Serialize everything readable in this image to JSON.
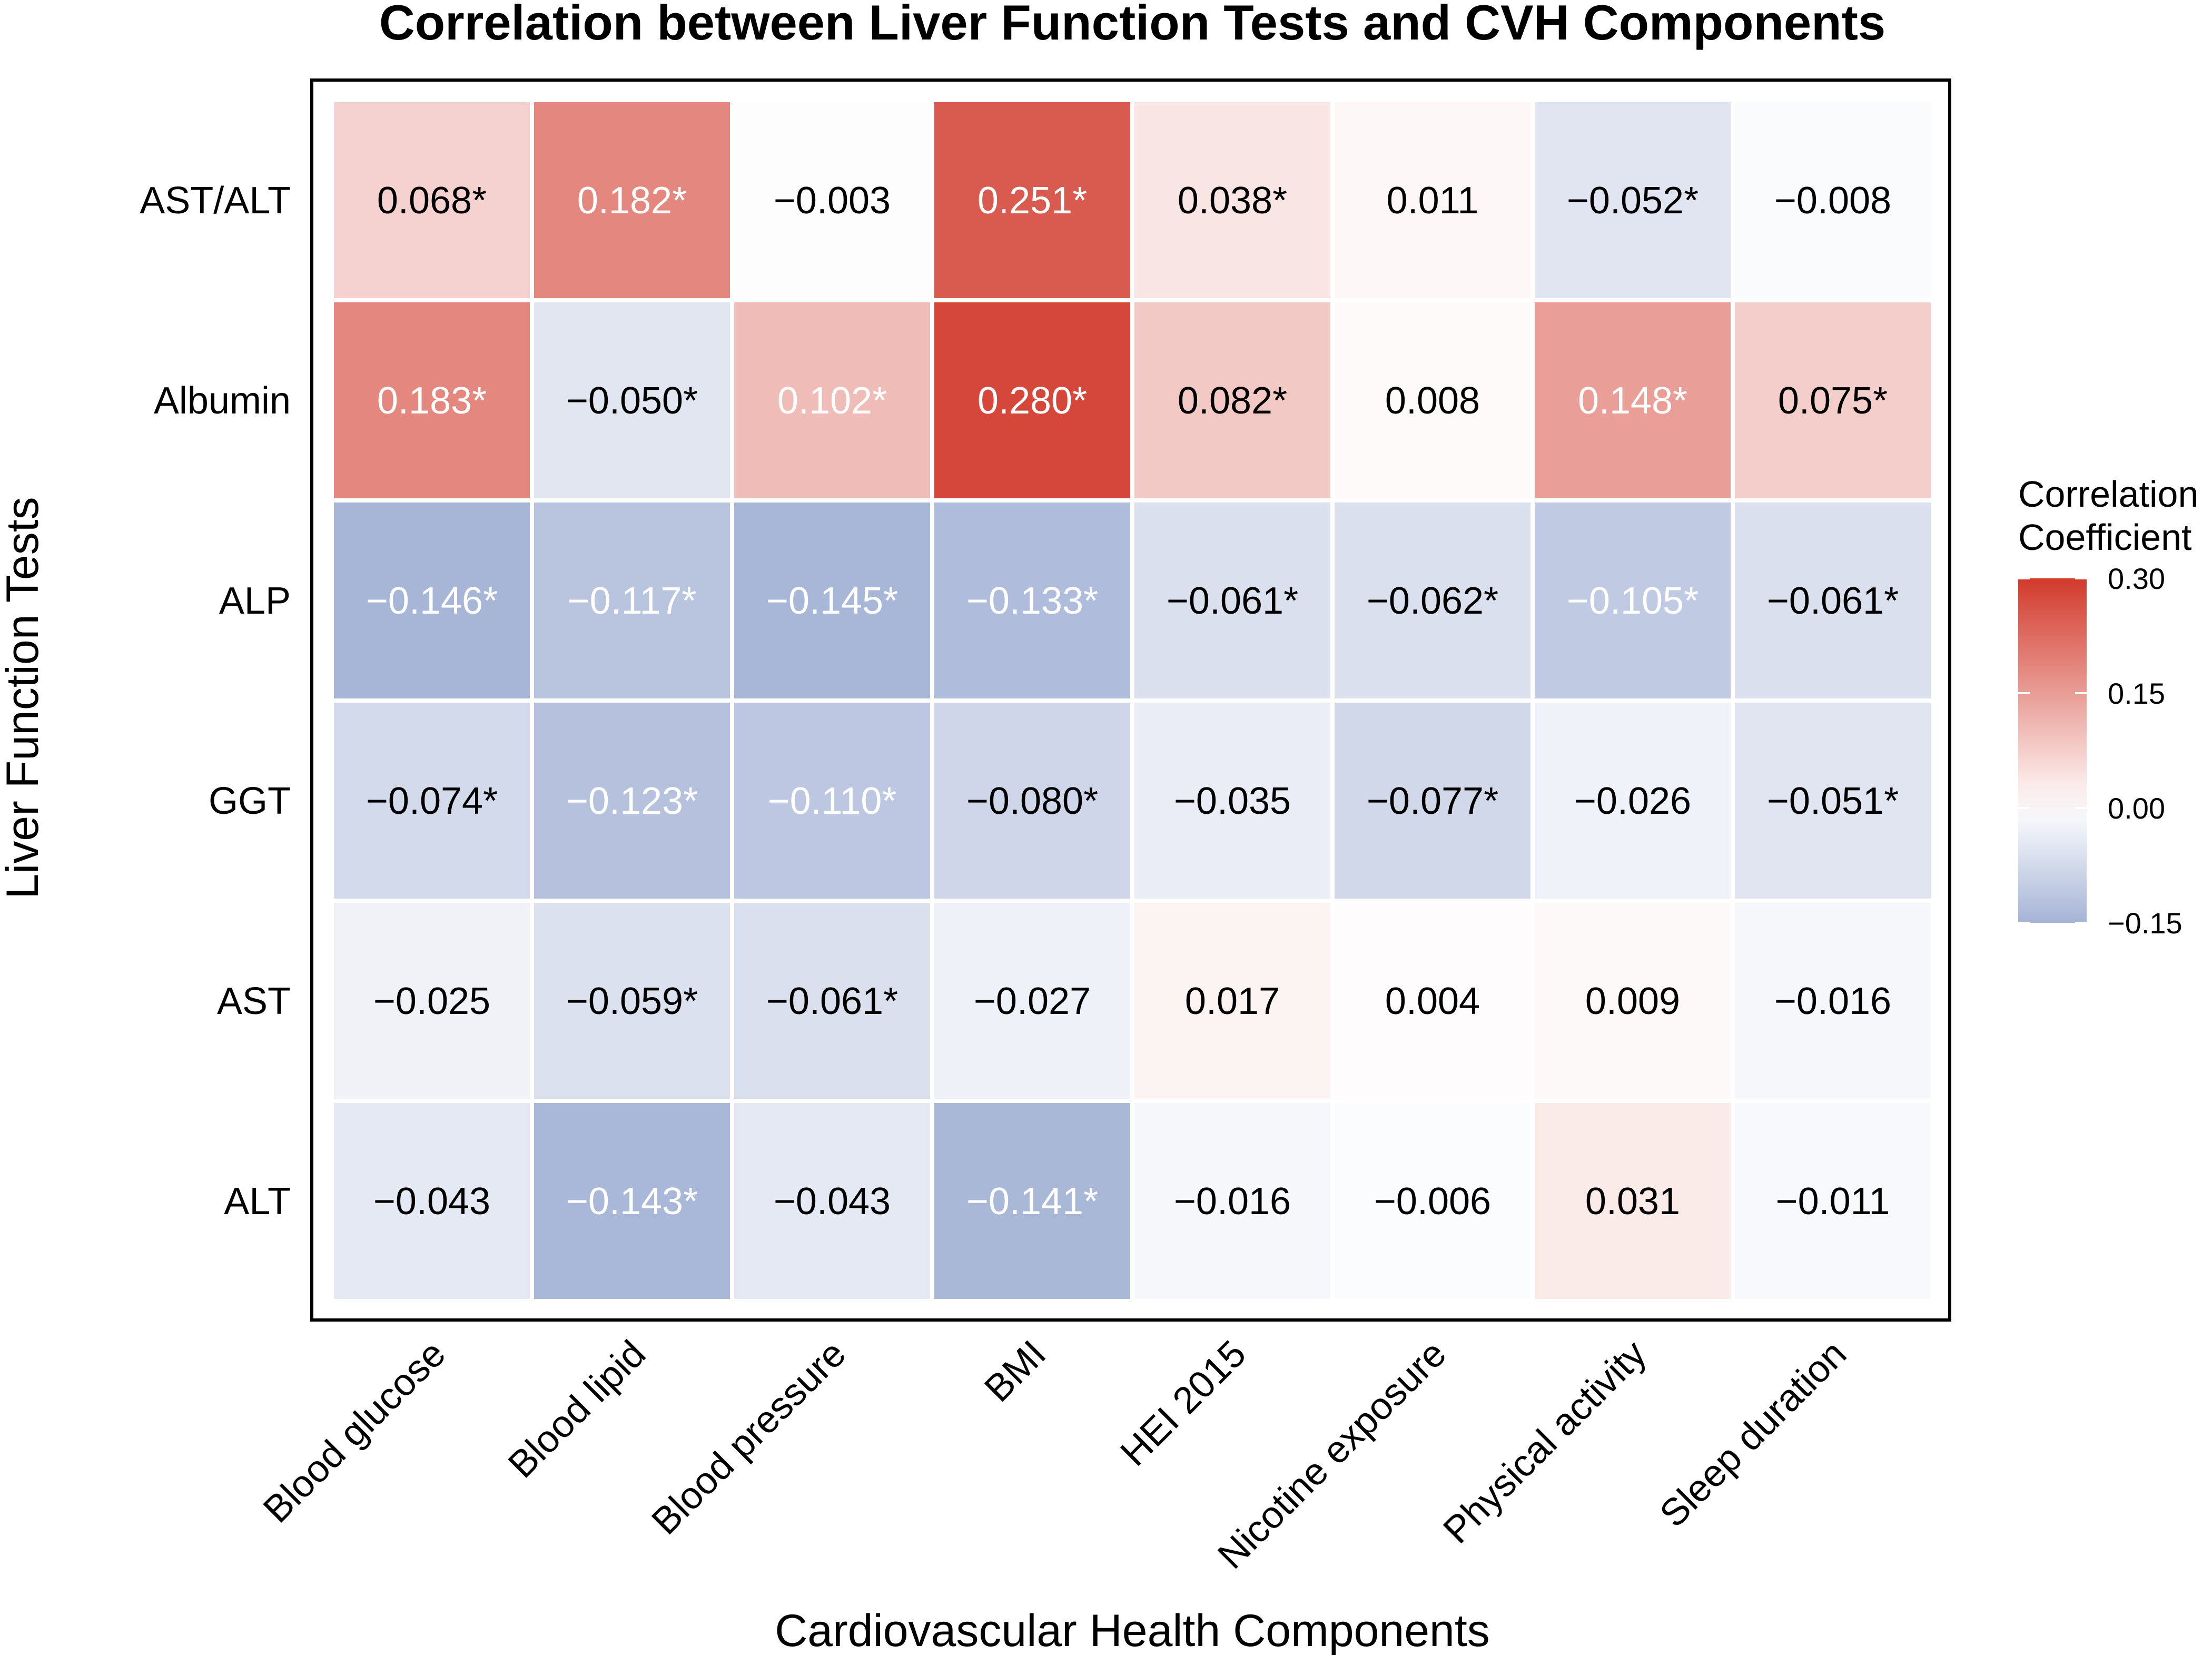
{
  "chart_data": {
    "type": "heatmap",
    "title": "Correlation between Liver Function Tests and CVH Components",
    "xlabel": "Cardiovascular Health Components",
    "ylabel": "Liver Function Tests",
    "columns": [
      "Blood glucose",
      "Blood lipid",
      "Blood pressure",
      "BMI",
      "HEI 2015",
      "Nicotine exposure",
      "Physical activity",
      "Sleep duration"
    ],
    "rows": [
      "AST/ALT",
      "Albumin",
      "ALP",
      "GGT",
      "AST",
      "ALT"
    ],
    "values": [
      [
        0.068,
        0.182,
        -0.003,
        0.251,
        0.038,
        0.011,
        -0.052,
        -0.008
      ],
      [
        0.183,
        -0.05,
        0.102,
        0.28,
        0.082,
        0.008,
        0.148,
        0.075
      ],
      [
        -0.146,
        -0.117,
        -0.145,
        -0.133,
        -0.061,
        -0.062,
        -0.105,
        -0.061
      ],
      [
        -0.074,
        -0.123,
        -0.11,
        -0.08,
        -0.035,
        -0.077,
        -0.026,
        -0.051
      ],
      [
        -0.025,
        -0.059,
        -0.061,
        -0.027,
        0.017,
        0.004,
        0.009,
        -0.016
      ],
      [
        -0.043,
        -0.143,
        -0.043,
        -0.141,
        -0.016,
        -0.006,
        0.031,
        -0.011
      ]
    ],
    "cell_labels": [
      [
        "0.068*",
        "0.182*",
        "−0.003",
        "0.251*",
        "0.038*",
        "0.011",
        "−0.052*",
        "−0.008"
      ],
      [
        "0.183*",
        "−0.050*",
        "0.102*",
        "0.280*",
        "0.082*",
        "0.008",
        "0.148*",
        "0.075*"
      ],
      [
        "−0.146*",
        "−0.117*",
        "−0.145*",
        "−0.133*",
        "−0.061*",
        "−0.062*",
        "−0.105*",
        "−0.061*"
      ],
      [
        "−0.074*",
        "−0.123*",
        "−0.110*",
        "−0.080*",
        "−0.035",
        "−0.077*",
        "−0.026",
        "−0.051*"
      ],
      [
        "−0.025",
        "−0.059*",
        "−0.061*",
        "−0.027",
        "0.017",
        "0.004",
        "0.009",
        "−0.016"
      ],
      [
        "−0.043",
        "−0.143*",
        "−0.043",
        "−0.141*",
        "−0.016",
        "−0.006",
        "0.031",
        "−0.011"
      ]
    ],
    "legend": {
      "title_line1": "Correlation",
      "title_line2": "Coefficient",
      "ticks": [
        {
          "value": 0.3,
          "label": "0.30"
        },
        {
          "value": 0.15,
          "label": "0.15"
        },
        {
          "value": 0.0,
          "label": "0.00"
        },
        {
          "value": -0.15,
          "label": "−0.15"
        }
      ],
      "range": [
        -0.15,
        0.3
      ],
      "position": "right"
    },
    "color_scale": {
      "low": "#a5b3d6",
      "mid": "#ffffff",
      "high": "#d23a2c"
    }
  }
}
